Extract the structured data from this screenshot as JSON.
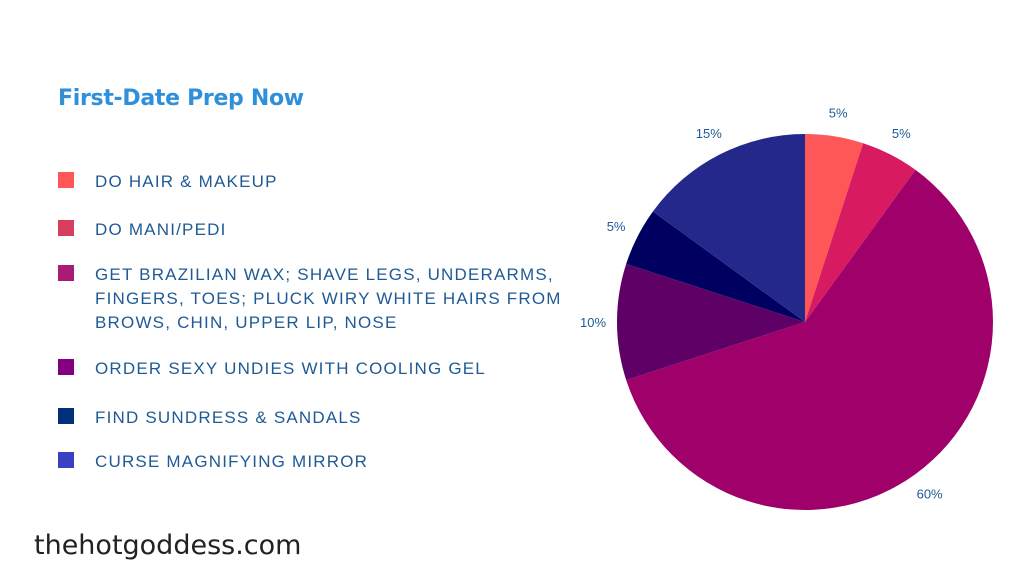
{
  "chart_data": {
    "type": "pie",
    "title": "First-Date Prep Now",
    "categories": [
      "DO HAIR & MAKEUP",
      "DO MANI/PEDI",
      "GET BRAZILIAN WAX; SHAVE LEGS, UNDERARMS, FINGERS, TOES; PLUCK WIRY WHITE HAIRS FROM BROWS, CHIN, UPPER LIP, NOSE",
      "ORDER SEXY UNDIES WITH COOLING GEL",
      "FIND SUNDRESS & SANDALS",
      "CURSE MAGNIFYING MIRROR"
    ],
    "values": [
      5,
      5,
      60,
      10,
      5,
      15
    ],
    "labels": [
      "5%",
      "5%",
      "60%",
      "10%",
      "5%",
      "15%"
    ],
    "slice_colors": [
      "#FF5757",
      "#D81B60",
      "#A0006A",
      "#5F0066",
      "#000060",
      "#24288A"
    ],
    "legend_colors": [
      "#FF5757",
      "#D63F61",
      "#A91C75",
      "#820080",
      "#00307A",
      "#3B40C0"
    ],
    "legend": "left"
  },
  "footer": "thehotgoddess.com"
}
